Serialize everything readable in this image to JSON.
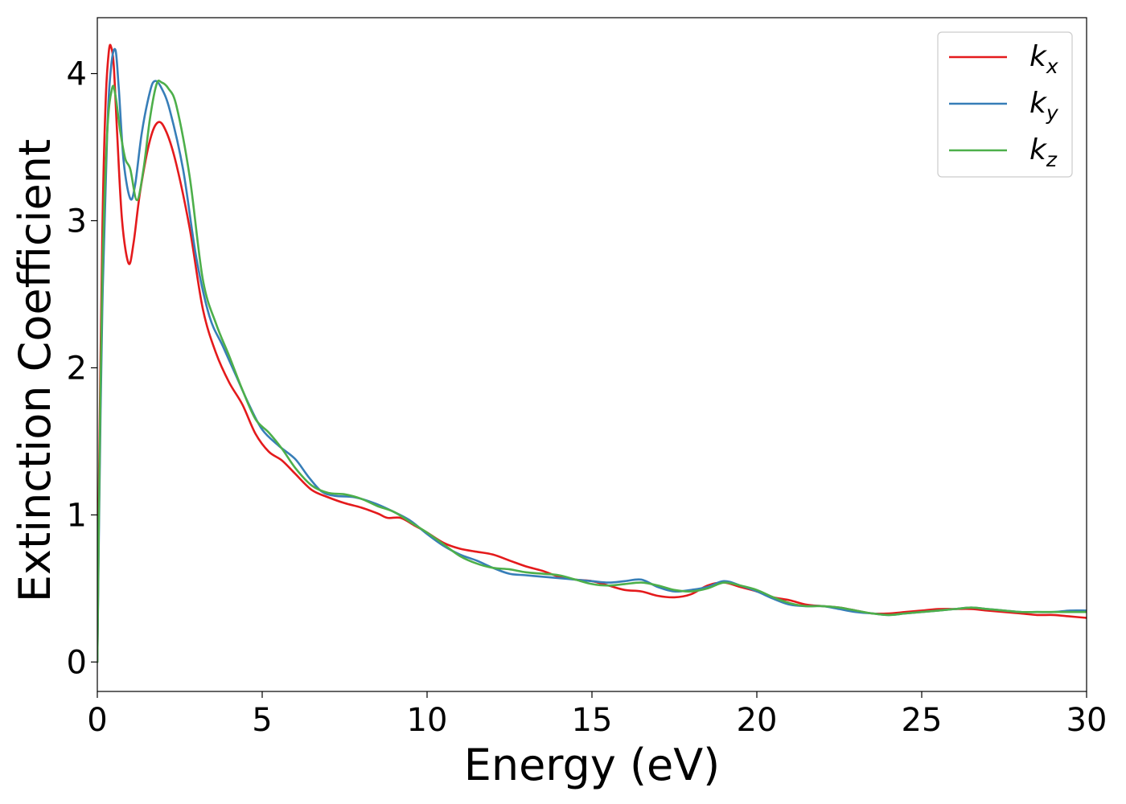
{
  "chart_data": {
    "type": "line",
    "xlabel": "Energy (eV)",
    "ylabel": "Extinction Coefficient",
    "xlim": [
      0,
      30
    ],
    "ylim": [
      -0.2,
      4.38
    ],
    "xticks": [
      0,
      5,
      10,
      15,
      20,
      25,
      30
    ],
    "yticks": [
      0,
      1,
      2,
      3,
      4
    ],
    "grid": false,
    "legend_position": "top-right",
    "series": [
      {
        "name": "k_x",
        "label_main": "k",
        "label_sub": "x",
        "color": "#e41a1c",
        "points": [
          [
            0,
            0
          ],
          [
            0.05,
            1.2
          ],
          [
            0.15,
            2.9
          ],
          [
            0.25,
            3.8
          ],
          [
            0.35,
            4.15
          ],
          [
            0.42,
            4.18
          ],
          [
            0.5,
            4.05
          ],
          [
            0.6,
            3.6
          ],
          [
            0.75,
            3.0
          ],
          [
            0.95,
            2.71
          ],
          [
            1.1,
            2.85
          ],
          [
            1.3,
            3.2
          ],
          [
            1.6,
            3.55
          ],
          [
            1.85,
            3.67
          ],
          [
            2.1,
            3.6
          ],
          [
            2.4,
            3.38
          ],
          [
            2.8,
            2.95
          ],
          [
            3.2,
            2.4
          ],
          [
            3.6,
            2.1
          ],
          [
            4.0,
            1.9
          ],
          [
            4.4,
            1.75
          ],
          [
            4.8,
            1.55
          ],
          [
            5.2,
            1.43
          ],
          [
            5.6,
            1.37
          ],
          [
            6.0,
            1.28
          ],
          [
            6.5,
            1.17
          ],
          [
            7.0,
            1.12
          ],
          [
            7.5,
            1.08
          ],
          [
            8.0,
            1.05
          ],
          [
            8.5,
            1.01
          ],
          [
            8.8,
            0.98
          ],
          [
            9.2,
            0.98
          ],
          [
            9.6,
            0.93
          ],
          [
            10.0,
            0.88
          ],
          [
            10.5,
            0.81
          ],
          [
            11.0,
            0.77
          ],
          [
            11.5,
            0.75
          ],
          [
            12.0,
            0.73
          ],
          [
            12.5,
            0.69
          ],
          [
            13.0,
            0.65
          ],
          [
            13.5,
            0.62
          ],
          [
            14.0,
            0.58
          ],
          [
            14.5,
            0.56
          ],
          [
            15.0,
            0.55
          ],
          [
            15.5,
            0.52
          ],
          [
            16.0,
            0.49
          ],
          [
            16.5,
            0.48
          ],
          [
            17.0,
            0.45
          ],
          [
            17.5,
            0.44
          ],
          [
            18.0,
            0.46
          ],
          [
            18.5,
            0.52
          ],
          [
            19.0,
            0.54
          ],
          [
            19.5,
            0.51
          ],
          [
            20.0,
            0.48
          ],
          [
            20.5,
            0.44
          ],
          [
            21.0,
            0.42
          ],
          [
            21.5,
            0.39
          ],
          [
            22.0,
            0.38
          ],
          [
            22.5,
            0.37
          ],
          [
            23.0,
            0.35
          ],
          [
            23.5,
            0.33
          ],
          [
            24.0,
            0.33
          ],
          [
            24.5,
            0.34
          ],
          [
            25.0,
            0.35
          ],
          [
            25.5,
            0.36
          ],
          [
            26.0,
            0.36
          ],
          [
            26.5,
            0.36
          ],
          [
            27.0,
            0.35
          ],
          [
            27.5,
            0.34
          ],
          [
            28.0,
            0.33
          ],
          [
            28.5,
            0.32
          ],
          [
            29.0,
            0.32
          ],
          [
            29.5,
            0.31
          ],
          [
            30.0,
            0.3
          ]
        ]
      },
      {
        "name": "k_y",
        "label_main": "k",
        "label_sub": "y",
        "color": "#377eb8",
        "points": [
          [
            0,
            0
          ],
          [
            0.05,
            0.9
          ],
          [
            0.15,
            2.4
          ],
          [
            0.3,
            3.6
          ],
          [
            0.42,
            4.05
          ],
          [
            0.55,
            4.16
          ],
          [
            0.65,
            3.9
          ],
          [
            0.8,
            3.4
          ],
          [
            1.0,
            3.15
          ],
          [
            1.15,
            3.25
          ],
          [
            1.35,
            3.6
          ],
          [
            1.6,
            3.88
          ],
          [
            1.75,
            3.95
          ],
          [
            1.95,
            3.9
          ],
          [
            2.2,
            3.75
          ],
          [
            2.6,
            3.35
          ],
          [
            3.0,
            2.75
          ],
          [
            3.4,
            2.35
          ],
          [
            3.8,
            2.15
          ],
          [
            4.2,
            1.95
          ],
          [
            4.6,
            1.75
          ],
          [
            5.0,
            1.58
          ],
          [
            5.5,
            1.47
          ],
          [
            6.0,
            1.38
          ],
          [
            6.4,
            1.26
          ],
          [
            6.8,
            1.16
          ],
          [
            7.2,
            1.13
          ],
          [
            7.8,
            1.12
          ],
          [
            8.4,
            1.08
          ],
          [
            9.0,
            1.02
          ],
          [
            9.5,
            0.96
          ],
          [
            10.0,
            0.87
          ],
          [
            10.5,
            0.79
          ],
          [
            11.0,
            0.73
          ],
          [
            11.5,
            0.69
          ],
          [
            12.0,
            0.64
          ],
          [
            12.5,
            0.6
          ],
          [
            13.0,
            0.59
          ],
          [
            13.5,
            0.58
          ],
          [
            14.0,
            0.57
          ],
          [
            14.5,
            0.56
          ],
          [
            15.0,
            0.55
          ],
          [
            15.5,
            0.54
          ],
          [
            16.0,
            0.55
          ],
          [
            16.5,
            0.56
          ],
          [
            17.0,
            0.51
          ],
          [
            17.5,
            0.48
          ],
          [
            18.0,
            0.49
          ],
          [
            18.5,
            0.51
          ],
          [
            19.0,
            0.55
          ],
          [
            19.5,
            0.52
          ],
          [
            20.0,
            0.48
          ],
          [
            20.5,
            0.43
          ],
          [
            21.0,
            0.39
          ],
          [
            21.5,
            0.38
          ],
          [
            22.0,
            0.38
          ],
          [
            22.5,
            0.36
          ],
          [
            23.0,
            0.34
          ],
          [
            23.5,
            0.33
          ],
          [
            24.0,
            0.32
          ],
          [
            24.5,
            0.33
          ],
          [
            25.0,
            0.34
          ],
          [
            25.5,
            0.35
          ],
          [
            26.0,
            0.36
          ],
          [
            26.5,
            0.37
          ],
          [
            27.0,
            0.36
          ],
          [
            27.5,
            0.35
          ],
          [
            28.0,
            0.34
          ],
          [
            28.5,
            0.34
          ],
          [
            29.0,
            0.34
          ],
          [
            29.5,
            0.35
          ],
          [
            30.0,
            0.35
          ]
        ]
      },
      {
        "name": "k_z",
        "label_main": "k",
        "label_sub": "z",
        "color": "#4daf4a",
        "points": [
          [
            0,
            0
          ],
          [
            0.05,
            1.0
          ],
          [
            0.15,
            2.6
          ],
          [
            0.3,
            3.6
          ],
          [
            0.45,
            3.9
          ],
          [
            0.55,
            3.85
          ],
          [
            0.7,
            3.6
          ],
          [
            0.85,
            3.42
          ],
          [
            1.0,
            3.35
          ],
          [
            1.2,
            3.14
          ],
          [
            1.4,
            3.35
          ],
          [
            1.6,
            3.7
          ],
          [
            1.8,
            3.93
          ],
          [
            1.95,
            3.94
          ],
          [
            2.15,
            3.9
          ],
          [
            2.4,
            3.78
          ],
          [
            2.8,
            3.3
          ],
          [
            3.2,
            2.6
          ],
          [
            3.6,
            2.3
          ],
          [
            4.0,
            2.08
          ],
          [
            4.4,
            1.85
          ],
          [
            4.8,
            1.65
          ],
          [
            5.2,
            1.56
          ],
          [
            5.6,
            1.45
          ],
          [
            6.0,
            1.32
          ],
          [
            6.5,
            1.2
          ],
          [
            7.0,
            1.15
          ],
          [
            7.5,
            1.14
          ],
          [
            8.0,
            1.11
          ],
          [
            8.5,
            1.06
          ],
          [
            9.0,
            1.02
          ],
          [
            9.5,
            0.95
          ],
          [
            10.0,
            0.88
          ],
          [
            10.5,
            0.8
          ],
          [
            11.0,
            0.72
          ],
          [
            11.5,
            0.67
          ],
          [
            12.0,
            0.64
          ],
          [
            12.5,
            0.63
          ],
          [
            13.0,
            0.61
          ],
          [
            13.5,
            0.6
          ],
          [
            14.0,
            0.59
          ],
          [
            14.5,
            0.56
          ],
          [
            15.0,
            0.53
          ],
          [
            15.5,
            0.52
          ],
          [
            16.0,
            0.53
          ],
          [
            16.5,
            0.54
          ],
          [
            17.0,
            0.52
          ],
          [
            17.5,
            0.49
          ],
          [
            18.0,
            0.48
          ],
          [
            18.5,
            0.5
          ],
          [
            19.0,
            0.54
          ],
          [
            19.5,
            0.52
          ],
          [
            20.0,
            0.49
          ],
          [
            20.5,
            0.44
          ],
          [
            21.0,
            0.4
          ],
          [
            21.5,
            0.38
          ],
          [
            22.0,
            0.38
          ],
          [
            22.5,
            0.37
          ],
          [
            23.0,
            0.35
          ],
          [
            23.5,
            0.33
          ],
          [
            24.0,
            0.32
          ],
          [
            24.5,
            0.33
          ],
          [
            25.0,
            0.34
          ],
          [
            25.5,
            0.35
          ],
          [
            26.0,
            0.36
          ],
          [
            26.5,
            0.37
          ],
          [
            27.0,
            0.36
          ],
          [
            27.5,
            0.35
          ],
          [
            28.0,
            0.34
          ],
          [
            28.5,
            0.34
          ],
          [
            29.0,
            0.34
          ],
          [
            29.5,
            0.34
          ],
          [
            30.0,
            0.34
          ]
        ]
      }
    ]
  }
}
